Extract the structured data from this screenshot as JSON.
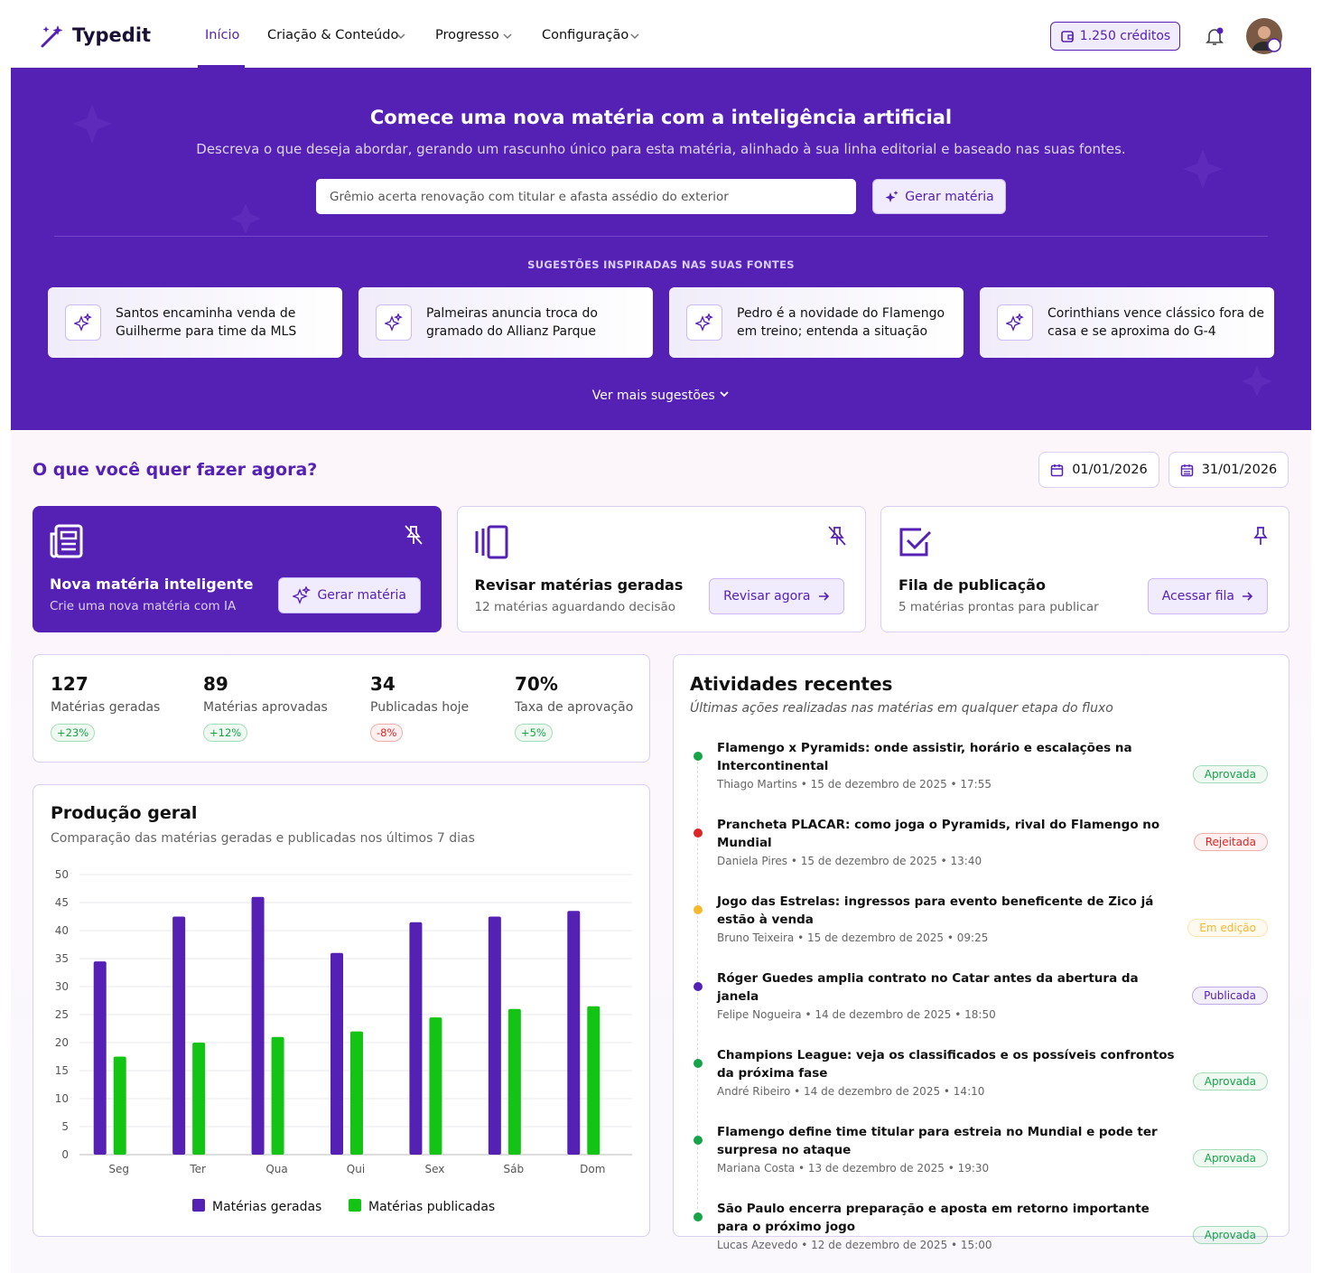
{
  "nav": {
    "brand": "Typedit",
    "items": [
      "Início",
      "Criação & Conteúdo",
      "Progresso",
      "Configuração"
    ],
    "credits": "1.250 créditos"
  },
  "hero": {
    "title": "Comece uma nova matéria com a inteligência artificial",
    "subtitle": "Descreva o que deseja abordar, gerando um rascunho único para esta matéria, alinhado à sua linha editorial e baseado nas suas fontes.",
    "input_value": "Grêmio acerta renovação com titular e afasta assédio do exterior",
    "button": "Gerar matéria",
    "suggestions_label": "SUGESTÕES INSPIRADAS NAS SUAS FONTES",
    "suggestions": [
      "Santos encaminha venda de Guilherme para time da MLS",
      "Palmeiras anuncia troca do gramado do Allianz Parque",
      "Pedro é a novidade do Flamengo em treino; entenda a situação",
      "Corinthians vence clássico fora de casa e se aproxima do G-4"
    ],
    "more": "Ver mais sugestões"
  },
  "actions": {
    "title": "O que você quer fazer agora?",
    "date_start": "01/01/2026",
    "date_end": "31/01/2026",
    "cards": [
      {
        "title": "Nova matéria inteligente",
        "subtitle": "Crie uma nova matéria com IA",
        "button": "Gerar matéria"
      },
      {
        "title": "Revisar matérias geradas",
        "subtitle": "12 matérias aguardando decisão",
        "button": "Revisar agora"
      },
      {
        "title": "Fila de publicação",
        "subtitle": "5 matérias prontas para publicar",
        "button": "Acessar fila"
      }
    ]
  },
  "stats": [
    {
      "value": "127",
      "label": "Matérias geradas",
      "change": "+23%",
      "color": "#16a34a"
    },
    {
      "value": "89",
      "label": "Matérias aprovadas",
      "change": "+12%",
      "color": "#16a34a"
    },
    {
      "value": "34",
      "label": "Publicadas hoje",
      "change": "-8%",
      "color": "#dc2626"
    },
    {
      "value": "70%",
      "label": "Taxa de aprovação",
      "change": "+5%",
      "color": "#16a34a"
    }
  ],
  "activity": {
    "title": "Atividades recentes",
    "subtitle": "Últimas ações realizadas nas matérias em qualquer etapa do fluxo",
    "items": [
      {
        "title": "Flamengo x Pyramids: onde assistir, horário e escalações na Intercontinental",
        "meta": "Thiago Martins • 15 de dezembro de 2025 • 17:55",
        "status": "Aprovada",
        "color": "#16a34a"
      },
      {
        "title": "Prancheta PLACAR: como joga o Pyramids, rival do Flamengo no Mundial",
        "meta": "Daniela Pires • 15 de dezembro de 2025 • 13:40",
        "status": "Rejeitada",
        "color": "#dc2626"
      },
      {
        "title": "Jogo das Estrelas: ingressos para evento beneficente de Zico já estão à venda",
        "meta": "Bruno Teixeira • 15 de dezembro de 2025 • 09:25",
        "status": "Em edição",
        "color": "#f5b82e"
      },
      {
        "title": "Róger Guedes amplia contrato no Catar antes da abertura da janela",
        "meta": "Felipe Nogueira • 14 de dezembro de 2025 • 18:50",
        "status": "Publicada",
        "color": "#5521b5"
      },
      {
        "title": "Champions League: veja os classificados e os possíveis confrontos da próxima fase",
        "meta": "André Ribeiro • 14 de dezembro de 2025 • 14:10",
        "status": "Aprovada",
        "color": "#16a34a"
      },
      {
        "title": "Flamengo define time titular para estreia no Mundial e pode ter surpresa no ataque",
        "meta": "Mariana Costa • 13 de dezembro de 2025 • 19:30",
        "status": "Aprovada",
        "color": "#16a34a"
      },
      {
        "title": "São Paulo encerra preparação e aposta em retorno importante para o próximo jogo",
        "meta": "Lucas Azevedo • 12 de dezembro de 2025 • 15:00",
        "status": "Aprovada",
        "color": "#16a34a"
      }
    ]
  },
  "chart_data": {
    "type": "bar",
    "title": "Produção geral",
    "subtitle": "Comparação das matérias geradas e publicadas nos últimos 7 dias",
    "categories": [
      "Seg",
      "Ter",
      "Qua",
      "Qui",
      "Sex",
      "Sáb",
      "Dom"
    ],
    "series": [
      {
        "name": "Matérias geradas",
        "color": "#5521b5",
        "values": [
          34.5,
          42.5,
          46,
          36,
          41.5,
          42.5,
          43.5
        ]
      },
      {
        "name": "Matérias publicadas",
        "color": "#14c414",
        "values": [
          17.5,
          20,
          21,
          22,
          24.5,
          26,
          26.5
        ]
      }
    ],
    "ylim": [
      0,
      50
    ],
    "yticks": [
      0,
      5,
      10,
      15,
      20,
      25,
      30,
      35,
      40,
      45,
      50
    ],
    "grid": true
  }
}
